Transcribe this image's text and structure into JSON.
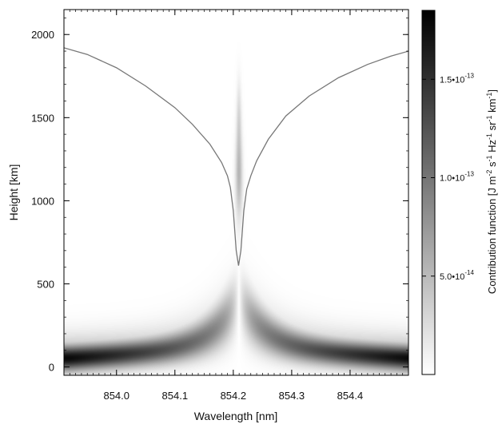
{
  "chart_data": {
    "type": "heatmap",
    "title": "",
    "xlabel": "Wavelength [nm]",
    "ylabel": "Height [km]",
    "xlim": [
      853.91,
      854.5
    ],
    "ylim": [
      -50,
      2150
    ],
    "x_ticks": [
      {
        "value": 854.0,
        "label": "854.0"
      },
      {
        "value": 854.1,
        "label": "854.1"
      },
      {
        "value": 854.2,
        "label": "854.2"
      },
      {
        "value": 854.3,
        "label": "854.3"
      },
      {
        "value": 854.4,
        "label": "854.4"
      }
    ],
    "y_ticks": [
      {
        "value": 0,
        "label": "0"
      },
      {
        "value": 500,
        "label": "500"
      },
      {
        "value": 1000,
        "label": "1000"
      },
      {
        "value": 1500,
        "label": "1500"
      },
      {
        "value": 2000,
        "label": "2000"
      }
    ],
    "colorbar": {
      "label_prefix": "Contribution function [J m",
      "label_segments": [
        {
          "text": "Contribution function [J m",
          "sup": false
        },
        {
          "text": "-2",
          "sup": true
        },
        {
          "text": " s",
          "sup": false
        },
        {
          "text": "-1",
          "sup": true
        },
        {
          "text": " Hz",
          "sup": false
        },
        {
          "text": "-1",
          "sup": true
        },
        {
          "text": " sr",
          "sup": false
        },
        {
          "text": "-1",
          "sup": true
        },
        {
          "text": " km",
          "sup": false
        },
        {
          "text": "-1",
          "sup": true
        },
        {
          "text": "]",
          "sup": false
        }
      ],
      "range": [
        0,
        1.85e-13
      ],
      "ticks": [
        {
          "value": 5e-14,
          "mantissa": "5.0•10",
          "exponent": "-14"
        },
        {
          "value": 1e-13,
          "mantissa": "1.0•10",
          "exponent": "-13"
        },
        {
          "value": 1.5e-13,
          "mantissa": "1.5•10",
          "exponent": "-13"
        }
      ],
      "colormap": "white-to-black"
    },
    "line_center": 854.209,
    "overlay_curve": {
      "description_values": "tau=1 height per wavelength",
      "x": [
        853.91,
        853.95,
        854.0,
        854.05,
        854.1,
        854.13,
        854.16,
        854.18,
        854.19,
        854.195,
        854.2,
        854.205,
        854.209,
        854.213,
        854.218,
        854.223,
        854.23,
        854.24,
        854.26,
        854.29,
        854.33,
        854.38,
        854.43,
        854.47,
        854.5
      ],
      "y": [
        1920,
        1880,
        1800,
        1690,
        1560,
        1460,
        1340,
        1230,
        1150,
        1080,
        940,
        700,
        610,
        700,
        940,
        1070,
        1150,
        1240,
        1370,
        1510,
        1630,
        1740,
        1820,
        1870,
        1900
      ]
    }
  }
}
